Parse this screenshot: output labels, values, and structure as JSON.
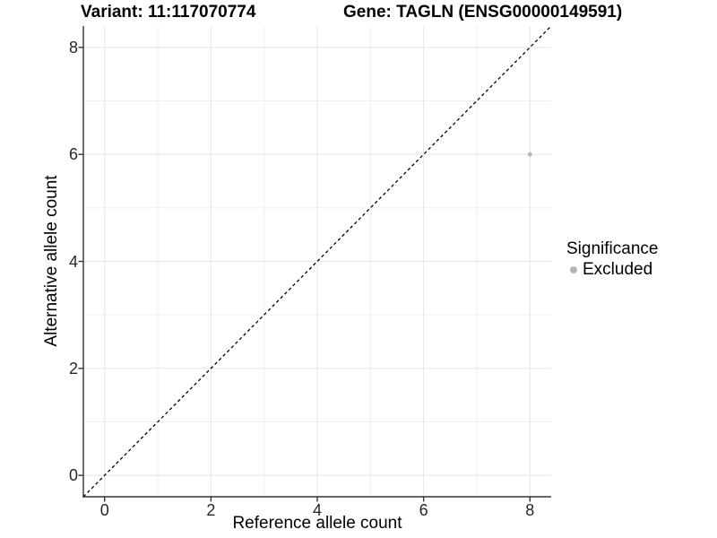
{
  "header": {
    "variant_title": "Variant: 11:117070774",
    "gene_title": "Gene: TAGLN (ENSG00000149591)"
  },
  "chart_data": {
    "type": "scatter",
    "title_left": "Variant: 11:117070774",
    "title_right": "Gene: TAGLN (ENSG00000149591)",
    "xlabel": "Reference allele count",
    "ylabel": "Alternative allele count",
    "xlim": [
      -0.4,
      8.4
    ],
    "ylim": [
      -0.4,
      8.4
    ],
    "xticks": [
      0,
      2,
      4,
      6,
      8
    ],
    "yticks": [
      0,
      2,
      4,
      6,
      8
    ],
    "xminor": [
      1,
      3,
      5,
      7
    ],
    "yminor": [
      1,
      3,
      5,
      7
    ],
    "grid": "major+minor, white panel background",
    "reference_line": {
      "type": "identity y=x",
      "style": "dashed",
      "x1": -0.4,
      "y1": -0.4,
      "x2": 8.4,
      "y2": 8.4
    },
    "series": [
      {
        "name": "Excluded",
        "color": "#b5b5b5",
        "points": [
          {
            "x": 8,
            "y": 6
          }
        ]
      }
    ],
    "legend": {
      "title": "Significance",
      "position": "right",
      "items": [
        {
          "label": "Excluded",
          "color": "#b5b5b5",
          "marker": "circle"
        }
      ]
    }
  },
  "colors": {
    "background": "#ffffff",
    "grid_major": "#e4e4e4",
    "grid_minor": "#efefef",
    "axis_line": "#333333",
    "tick_mark": "#333333",
    "tick_label": "#262626",
    "dashed_line": "#000000",
    "point": "#b5b5b5"
  }
}
